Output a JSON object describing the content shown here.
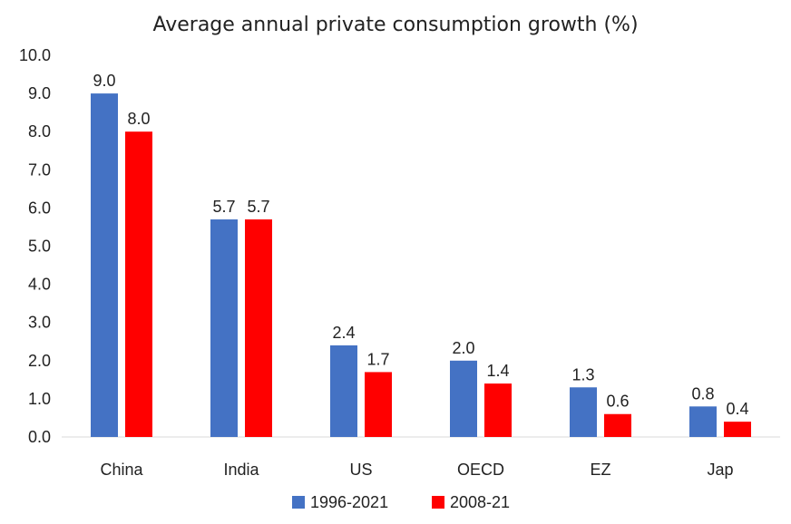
{
  "chart_data": {
    "type": "bar",
    "title": "Average annual private consumption growth (%)",
    "xlabel": "",
    "ylabel": "",
    "categories": [
      "China",
      "India",
      "US",
      "OECD",
      "EZ",
      "Jap"
    ],
    "series": [
      {
        "name": "1996-2021",
        "color": "#4472C4",
        "values": [
          9.0,
          5.7,
          2.4,
          2.0,
          1.3,
          0.8
        ],
        "labels": [
          "9.0",
          "5.7",
          "2.4",
          "2.0",
          "1.3",
          "0.8"
        ]
      },
      {
        "name": "2008-21",
        "color": "#FF0000",
        "values": [
          8.0,
          5.7,
          1.7,
          1.4,
          0.6,
          0.4
        ],
        "labels": [
          "8.0",
          "5.7",
          "1.7",
          "1.4",
          "0.6",
          "0.4"
        ]
      }
    ],
    "ylim": [
      0,
      10
    ],
    "yticks": [
      "0.0",
      "1.0",
      "2.0",
      "3.0",
      "4.0",
      "5.0",
      "6.0",
      "7.0",
      "8.0",
      "9.0",
      "10.0"
    ],
    "grid": false,
    "legend_position": "bottom-center"
  }
}
